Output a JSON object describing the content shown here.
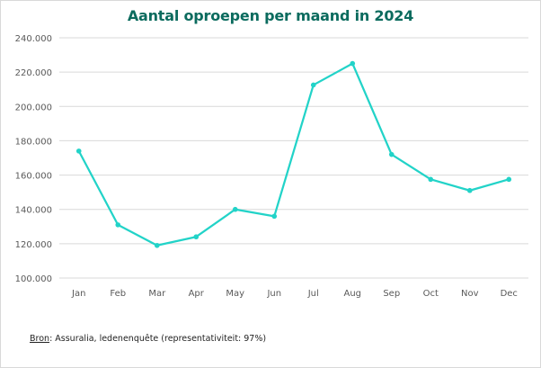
{
  "chart_data": {
    "type": "line",
    "title": "Aantal oproepen per maand in 2024",
    "categories": [
      "Jan",
      "Feb",
      "Mar",
      "Apr",
      "May",
      "Jun",
      "Jul",
      "Aug",
      "Sep",
      "Oct",
      "Nov",
      "Dec"
    ],
    "series": [
      {
        "values": [
          174000,
          131000,
          119000,
          124000,
          140000,
          136000,
          212500,
          225000,
          172000,
          157500,
          151000,
          157500
        ]
      }
    ],
    "ylim": [
      100000,
      240000
    ],
    "yticks": [
      "100.000",
      "120.000",
      "140.000",
      "160.000",
      "180.000",
      "200.000",
      "220.000",
      "240.000"
    ],
    "grid": true,
    "colors": {
      "line": "#22d3c8",
      "grid": "#d9d9d9",
      "title": "#0b6b5e",
      "tick": "#595959"
    }
  },
  "source": {
    "label": "Bron",
    "text": ": Assuralia, ledenenquête (representativiteit: 97%)"
  }
}
